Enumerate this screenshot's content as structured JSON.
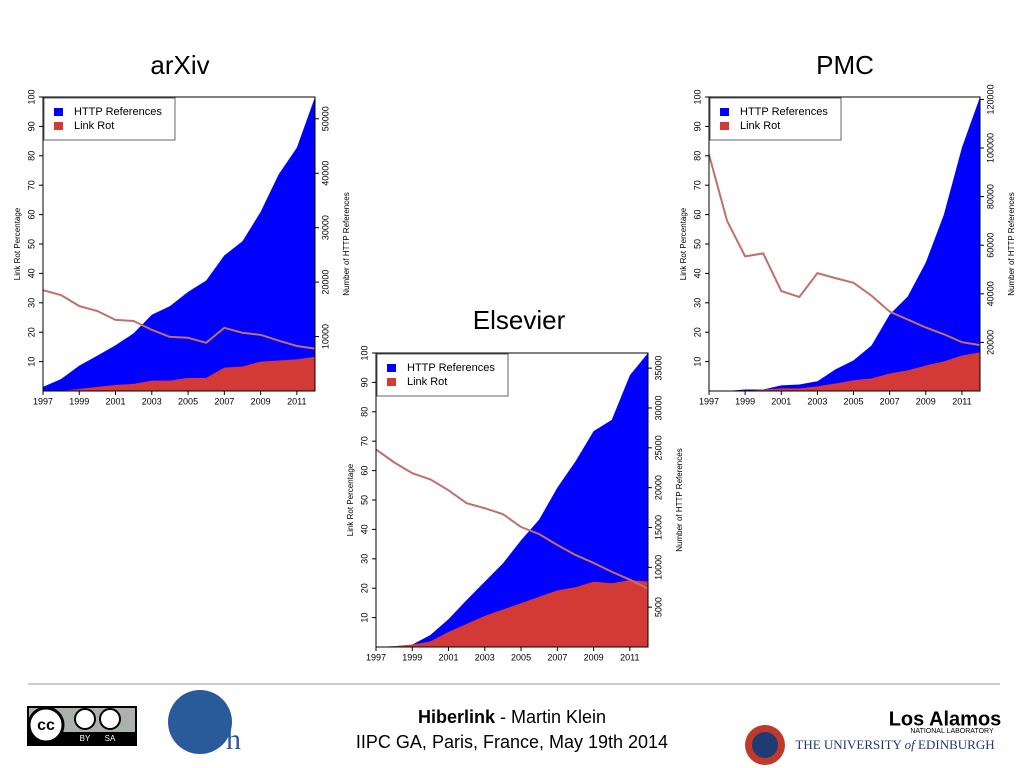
{
  "chart_data": [
    {
      "type": "area",
      "title": "arXiv",
      "ylabel": "Link Rot Percentage",
      "y2label": "Number of HTTP References",
      "x": [
        1997,
        1998,
        1999,
        2000,
        2001,
        2002,
        2003,
        2004,
        2005,
        2006,
        2007,
        2008,
        2009,
        2010,
        2011,
        2012
      ],
      "xlim": [
        1997,
        2012
      ],
      "xticks": [
        1997,
        1999,
        2001,
        2003,
        2005,
        2007,
        2009,
        2011
      ],
      "ylim": [
        0,
        100
      ],
      "yticks": [
        10,
        20,
        30,
        40,
        50,
        60,
        70,
        80,
        90,
        100
      ],
      "y2lim": [
        0,
        54000
      ],
      "y2ticks": [
        10000,
        20000,
        30000,
        40000,
        50000
      ],
      "legend": "top-left",
      "series": [
        {
          "name": "HTTP References",
          "color": "#0000ff",
          "axis": "y2",
          "values": [
            750,
            2200,
            4650,
            6500,
            8400,
            10600,
            14000,
            15600,
            18200,
            20300,
            24900,
            27500,
            32900,
            39800,
            44700,
            54000
          ]
        },
        {
          "name": "Link Rot",
          "color": "#d33a36",
          "axis": "y2",
          "values": [
            0,
            0,
            400,
            750,
            1100,
            1300,
            1900,
            1900,
            2400,
            2400,
            4300,
            4500,
            5400,
            5600,
            5800,
            6300
          ]
        },
        {
          "type": "line",
          "color": "#c0706a",
          "values": [
            34.3,
            32.6,
            28.9,
            27.2,
            24.2,
            23.8,
            20.8,
            18.4,
            18.1,
            16.4,
            21.5,
            19.8,
            19.1,
            17.1,
            15.3,
            14.4
          ]
        }
      ]
    },
    {
      "type": "area",
      "title": "PMC",
      "ylabel": "Link Rot Percentage",
      "y2label": "Number of HTTP References",
      "x": [
        1997,
        1998,
        1999,
        2000,
        2001,
        2002,
        2003,
        2004,
        2005,
        2006,
        2007,
        2008,
        2009,
        2010,
        2011,
        2012
      ],
      "xlim": [
        1997,
        2012
      ],
      "xticks": [
        1997,
        1999,
        2001,
        2003,
        2005,
        2007,
        2009,
        2011
      ],
      "ylim": [
        0,
        100
      ],
      "yticks": [
        10,
        20,
        30,
        40,
        50,
        60,
        70,
        80,
        90,
        100
      ],
      "y2lim": [
        0,
        121000
      ],
      "y2ticks": [
        20000,
        40000,
        60000,
        80000,
        100000,
        120000
      ],
      "legend": "top-left",
      "series": [
        {
          "name": "HTTP References",
          "color": "#0000ff",
          "axis": "y2",
          "values": [
            0,
            0,
            600,
            600,
            2300,
            2700,
            4000,
            8900,
            12600,
            18800,
            31500,
            38900,
            52900,
            72600,
            100200,
            121000
          ]
        },
        {
          "name": "Link Rot",
          "color": "#d33a36",
          "axis": "y2",
          "values": [
            0,
            0,
            0,
            600,
            1100,
            1100,
            1900,
            3100,
            4400,
            5200,
            7200,
            8500,
            10500,
            12200,
            14600,
            15900
          ]
        },
        {
          "type": "line",
          "color": "#c0706a",
          "values": [
            80.4,
            57.9,
            45.8,
            46.8,
            34.0,
            32.0,
            40.1,
            38.4,
            36.8,
            32.4,
            27.0,
            24.3,
            21.6,
            19.3,
            16.6,
            15.6
          ]
        }
      ]
    },
    {
      "type": "area",
      "title": "Elsevier",
      "ylabel": "Link Rot Percentage",
      "y2label": "Number of HTTP References",
      "x": [
        1997,
        1998,
        1999,
        2000,
        2001,
        2002,
        2003,
        2004,
        2005,
        2006,
        2007,
        2008,
        2009,
        2010,
        2011,
        2012
      ],
      "xlim": [
        1997,
        2012
      ],
      "xticks": [
        1997,
        1999,
        2001,
        2003,
        2005,
        2007,
        2009,
        2011
      ],
      "ylim": [
        0,
        100
      ],
      "yticks": [
        10,
        20,
        30,
        40,
        50,
        60,
        70,
        80,
        90,
        100
      ],
      "y2lim": [
        0,
        36900
      ],
      "y2ticks": [
        5000,
        10000,
        15000,
        20000,
        25000,
        30000,
        35000
      ],
      "legend": "top-left",
      "series": [
        {
          "name": "HTTP References",
          "color": "#0000ff",
          "axis": "y2",
          "values": [
            0,
            100,
            300,
            1500,
            3500,
            5900,
            8200,
            10500,
            13400,
            16000,
            20000,
            23300,
            27100,
            28500,
            34100,
            36900
          ]
        },
        {
          "name": "Link Rot",
          "color": "#d33a36",
          "axis": "y2",
          "values": [
            0,
            100,
            300,
            700,
            1900,
            2900,
            3900,
            4700,
            5500,
            6300,
            7100,
            7500,
            8200,
            8000,
            8400,
            8200
          ]
        },
        {
          "type": "line",
          "color": "#c0706a",
          "values": [
            67.2,
            62.8,
            59.1,
            57.0,
            53.3,
            48.9,
            47.2,
            45.2,
            40.8,
            38.4,
            34.7,
            31.3,
            28.6,
            25.6,
            22.9,
            19.8
          ]
        }
      ]
    }
  ],
  "footer": {
    "cc": "cc",
    "by": "BY",
    "sa": "SA",
    "logo": "h",
    "project": "Hiberlink",
    "author": "- Martin Klein",
    "event": "IIPC GA, Paris, France, May 19th 2014",
    "lanl": "Los Alamos",
    "lanl_sub": "NATIONAL LABORATORY",
    "uni_a": "THE UNIVERSITY",
    "uni_of": "of",
    "uni_b": "EDINBURGH"
  }
}
